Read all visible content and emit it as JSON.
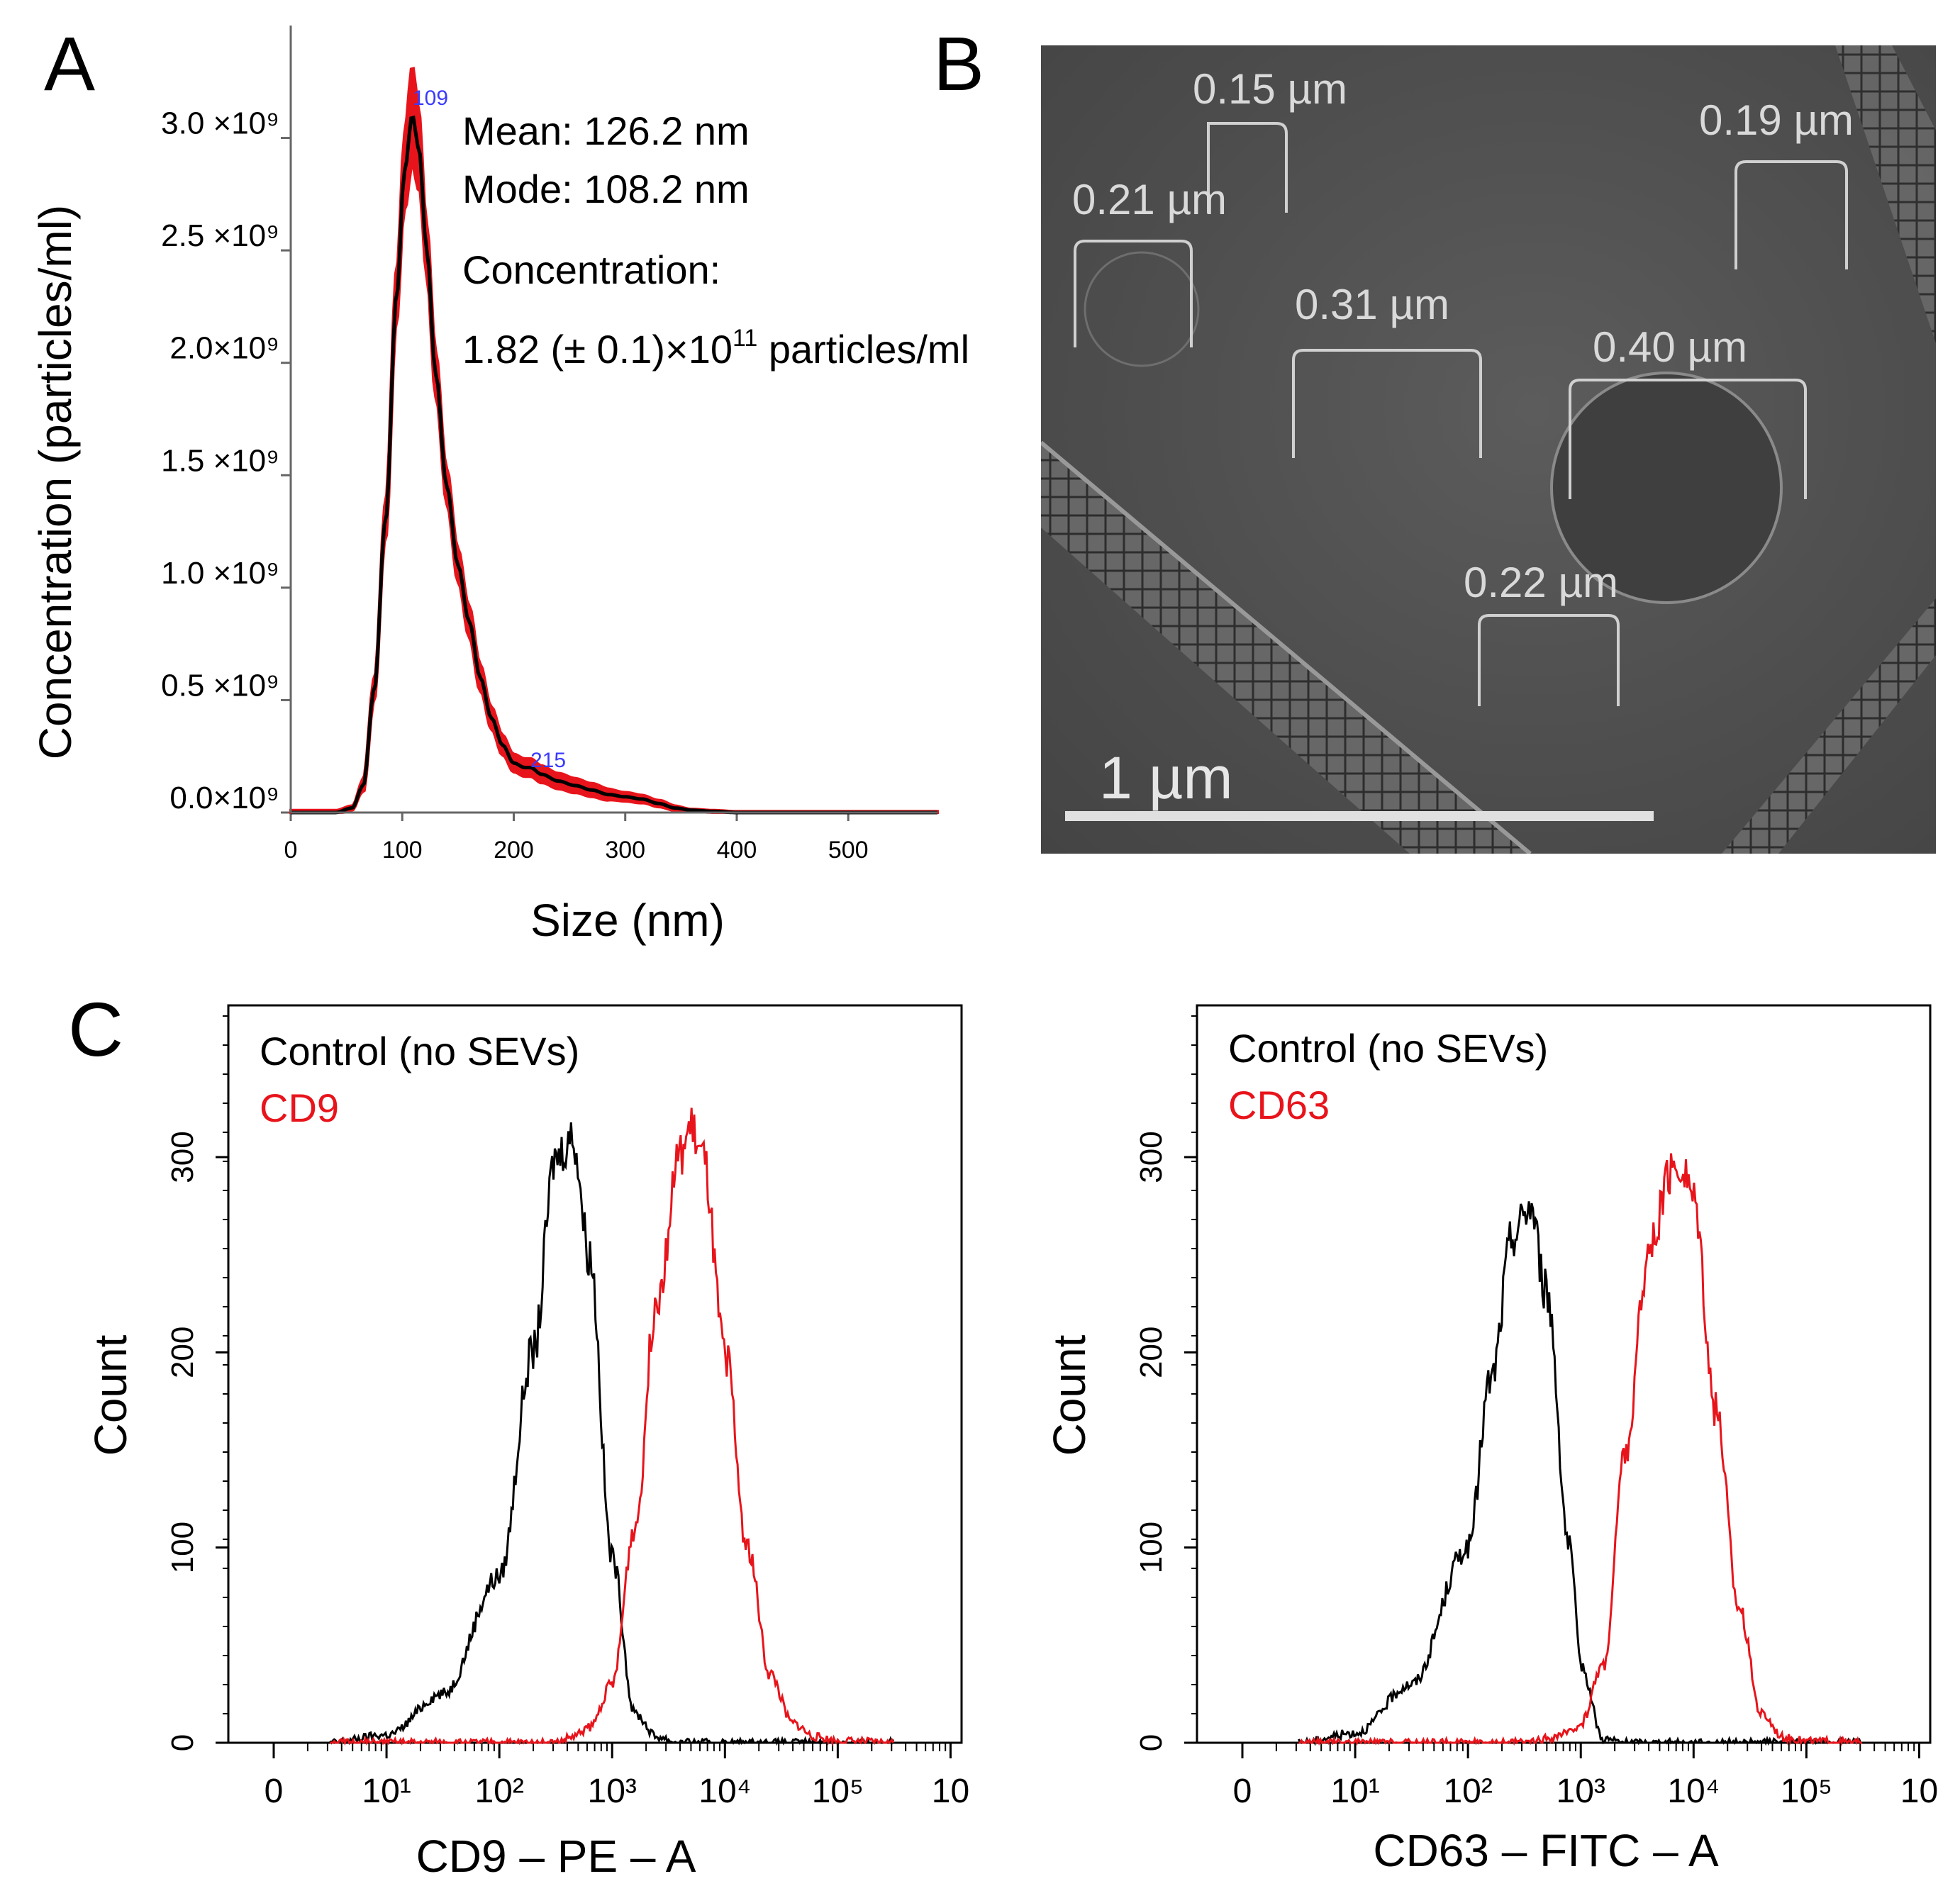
{
  "panels": {
    "a": "A",
    "b": "B",
    "c": "C"
  },
  "colors": {
    "red": "#e8141b",
    "black": "#000000",
    "tem_text": "#d9d9d9",
    "peak_label": "#3a3aff"
  },
  "nta": {
    "mean": "Mean: 126.2 nm",
    "mode": "Mode: 108.2 nm",
    "conc_label": "Concentration:",
    "conc_value_prefix": "1.82 (± 0.1)×10",
    "conc_value_exp": "11",
    "conc_value_suffix": " particles/ml",
    "peak1": "109",
    "peak2": "215"
  },
  "tem": {
    "scale_label": "1 µm",
    "labels": [
      "0.15 µm",
      "0.19 µm",
      "0.21 µm",
      "0.31 µm",
      "0.40 µm",
      "0.22 µm"
    ]
  },
  "flow": {
    "left_legend_control": "Control (no SEVs)",
    "left_legend_marker": "CD9",
    "right_legend_control": "Control (no SEVs)",
    "right_legend_marker": "CD63"
  },
  "chart_data": [
    {
      "type": "line",
      "title": "",
      "xlabel": "Size (nm)",
      "ylabel": "Concentration (particles/ml)",
      "xlim": [
        0,
        580
      ],
      "ylim": [
        0,
        3.5
      ],
      "xticks": [
        "0",
        "100",
        "200",
        "300",
        "400",
        "500"
      ],
      "yticks": [
        "0.0×10⁹",
        "0.5 ×10⁹",
        "1.0 ×10⁹",
        "1.5 ×10⁹",
        "2.0×10⁹",
        "2.5 ×10⁹",
        "3.0 ×10⁹"
      ],
      "series": [
        {
          "name": "mean",
          "x": [
            0,
            40,
            55,
            65,
            75,
            85,
            95,
            102,
            109,
            115,
            122,
            130,
            140,
            150,
            160,
            170,
            180,
            190,
            200,
            210,
            215,
            225,
            240,
            255,
            270,
            285,
            300,
            315,
            330,
            345,
            360,
            380,
            400,
            450,
            580
          ],
          "y": [
            0,
            0,
            0.02,
            0.12,
            0.55,
            1.3,
            2.3,
            2.85,
            3.1,
            2.95,
            2.5,
            1.95,
            1.45,
            1.1,
            0.85,
            0.6,
            0.42,
            0.3,
            0.22,
            0.2,
            0.2,
            0.17,
            0.14,
            0.12,
            0.1,
            0.08,
            0.07,
            0.06,
            0.04,
            0.02,
            0.01,
            0.005,
            0,
            0,
            0
          ]
        },
        {
          "name": "error band (±)",
          "x": [
            55,
            75,
            95,
            109,
            122,
            140,
            160,
            180,
            200,
            215,
            240,
            270,
            300,
            330,
            360
          ],
          "y": [
            0.01,
            0.05,
            0.12,
            0.22,
            0.12,
            0.08,
            0.07,
            0.05,
            0.04,
            0.04,
            0.035,
            0.03,
            0.02,
            0.015,
            0.005
          ]
        }
      ]
    },
    {
      "type": "line",
      "xlabel": "CD9 – PE – A",
      "ylabel": "Count",
      "yticks": [
        "0",
        "100",
        "200",
        "300"
      ],
      "xticks": [
        "0",
        "10¹",
        "10²",
        "10³",
        "10⁴",
        "10⁵",
        "10"
      ],
      "log10_x": [
        0.5,
        1,
        1.5,
        2,
        2.3,
        2.5,
        2.65,
        2.8,
        3,
        3.2,
        3.4,
        3.6,
        3.7,
        3.8,
        4,
        4.2,
        4.4,
        4.6,
        4.8,
        5,
        5.5
      ],
      "series": [
        {
          "name": "Control (no SEVs)",
          "values": [
            0,
            4,
            25,
            85,
            200,
            300,
            310,
            250,
            95,
            15,
            3,
            0,
            0,
            0,
            0,
            0,
            0,
            0,
            0,
            0,
            0
          ]
        },
        {
          "name": "CD9",
          "values": [
            0,
            0,
            0,
            0,
            0,
            0,
            3,
            8,
            30,
            110,
            230,
            300,
            315,
            300,
            200,
            100,
            35,
            10,
            3,
            1,
            0
          ]
        }
      ]
    },
    {
      "type": "line",
      "xlabel": "CD63 – FITC – A",
      "ylabel": "Count",
      "yticks": [
        "0",
        "100",
        "200",
        "300"
      ],
      "xticks": [
        "0",
        "10¹",
        "10²",
        "10³",
        "10⁴",
        "10⁵",
        "10"
      ],
      "log10_x": [
        0.5,
        1,
        1.5,
        2,
        2.2,
        2.4,
        2.55,
        2.7,
        2.9,
        3,
        3.2,
        3.4,
        3.6,
        3.8,
        3.9,
        4,
        4.2,
        4.4,
        4.6,
        4.8,
        5,
        5.5
      ],
      "series": [
        {
          "name": "Control (no SEVs)",
          "values": [
            0,
            5,
            30,
            100,
            185,
            260,
            275,
            230,
            100,
            40,
            2,
            0,
            0,
            0,
            0,
            0,
            0,
            0,
            0,
            0,
            0,
            0
          ]
        },
        {
          "name": "CD63",
          "values": [
            0,
            0,
            0,
            0,
            0,
            0,
            0,
            2,
            5,
            10,
            40,
            150,
            250,
            290,
            295,
            280,
            170,
            70,
            15,
            3,
            1,
            0
          ]
        }
      ]
    }
  ]
}
